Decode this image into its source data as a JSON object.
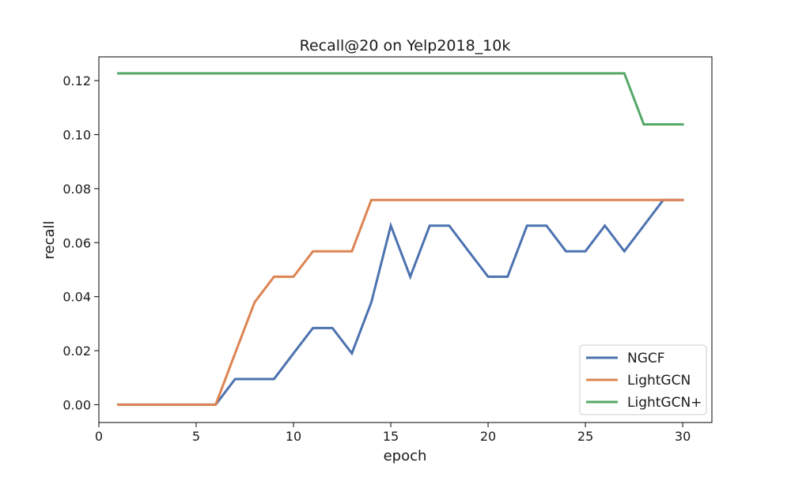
{
  "chart_data": {
    "type": "line",
    "title": "Recall@20 on Yelp2018_10k",
    "xlabel": "epoch",
    "ylabel": "recall",
    "xlim": [
      0,
      31.5
    ],
    "ylim": [
      -0.0066,
      0.1288
    ],
    "xticks": [
      0,
      5,
      10,
      15,
      20,
      25,
      30
    ],
    "yticks": [
      0.0,
      0.02,
      0.04,
      0.06,
      0.08,
      0.1,
      0.12
    ],
    "ytick_labels": [
      "0.00",
      "0.02",
      "0.04",
      "0.06",
      "0.08",
      "0.10",
      "0.12"
    ],
    "grid": false,
    "legend_position": "lower-right",
    "x": [
      1,
      2,
      3,
      4,
      5,
      6,
      7,
      8,
      9,
      10,
      11,
      12,
      13,
      14,
      15,
      16,
      17,
      18,
      19,
      20,
      21,
      22,
      23,
      24,
      25,
      26,
      27,
      28,
      29,
      30
    ],
    "series": [
      {
        "name": "NGCF",
        "color": "#4c72b0",
        "values": [
          0,
          0,
          0,
          0,
          0,
          0,
          0.0095,
          0.0095,
          0.0095,
          0.019,
          0.0284,
          0.0284,
          0.019,
          0.0379,
          0.0663,
          0.0474,
          0.0663,
          0.0663,
          0.0568,
          0.0474,
          0.0474,
          0.0663,
          0.0663,
          0.0568,
          0.0568,
          0.0663,
          0.0568,
          0.0663,
          0.0758,
          0.0758
        ]
      },
      {
        "name": "LightGCN",
        "color": "#dd8452",
        "values": [
          0,
          0,
          0,
          0,
          0,
          0,
          0.019,
          0.0379,
          0.0474,
          0.0474,
          0.0568,
          0.0568,
          0.0568,
          0.0758,
          0.0758,
          0.0758,
          0.0758,
          0.0758,
          0.0758,
          0.0758,
          0.0758,
          0.0758,
          0.0758,
          0.0758,
          0.0758,
          0.0758,
          0.0758,
          0.0758,
          0.0758,
          0.0758
        ]
      },
      {
        "name": "LightGCN+",
        "color": "#55a868",
        "values": [
          0.1227,
          0.1227,
          0.1227,
          0.1227,
          0.1227,
          0.1227,
          0.1227,
          0.1227,
          0.1227,
          0.1227,
          0.1227,
          0.1227,
          0.1227,
          0.1227,
          0.1227,
          0.1227,
          0.1227,
          0.1227,
          0.1227,
          0.1227,
          0.1227,
          0.1227,
          0.1227,
          0.1227,
          0.1227,
          0.1227,
          0.1227,
          0.1038,
          0.1038,
          0.1038
        ]
      }
    ]
  }
}
